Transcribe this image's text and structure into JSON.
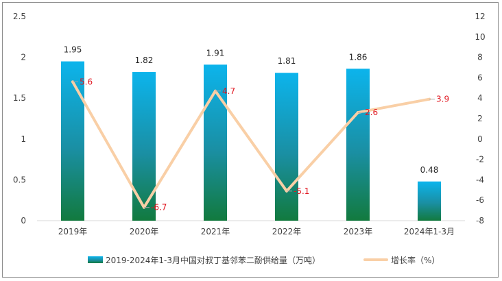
{
  "chart_data": {
    "type": "bar",
    "categories": [
      "2019年",
      "2020年",
      "2021年",
      "2022年",
      "2023年",
      "2024年1-3月"
    ],
    "series": [
      {
        "name": "2019-2024年1-3月中国对叔丁基邻苯二酚供给量（万吨）",
        "type": "bar",
        "axis": "left",
        "values": [
          1.95,
          1.82,
          1.91,
          1.81,
          1.86,
          0.48
        ]
      },
      {
        "name": "增长率（%）",
        "type": "line",
        "axis": "right",
        "values": [
          5.6,
          -6.7,
          4.7,
          -5.1,
          2.6,
          3.9
        ]
      }
    ],
    "ylim_left": [
      0,
      2.5
    ],
    "yticks_left": [
      "0",
      "0.5",
      "1",
      "1.5",
      "2",
      "2.5"
    ],
    "ylim_right": [
      -8,
      12
    ],
    "yticks_right": [
      "-8",
      "-6",
      "-4",
      "-2",
      "0",
      "2",
      "4",
      "6",
      "8",
      "10",
      "12"
    ],
    "bar_labels": [
      "1.95",
      "1.82",
      "1.91",
      "1.81",
      "1.86",
      "0.48"
    ],
    "line_labels": [
      "5.6",
      "-6.7",
      "4.7",
      "-5.1",
      "2.6",
      "3.9"
    ],
    "legend_position": "bottom",
    "grid": false,
    "colors": {
      "bar_top": "#0cb4ec",
      "bar_bottom": "#127a3e",
      "line": "#f9cfa6",
      "line_label": "#e0141e"
    }
  }
}
